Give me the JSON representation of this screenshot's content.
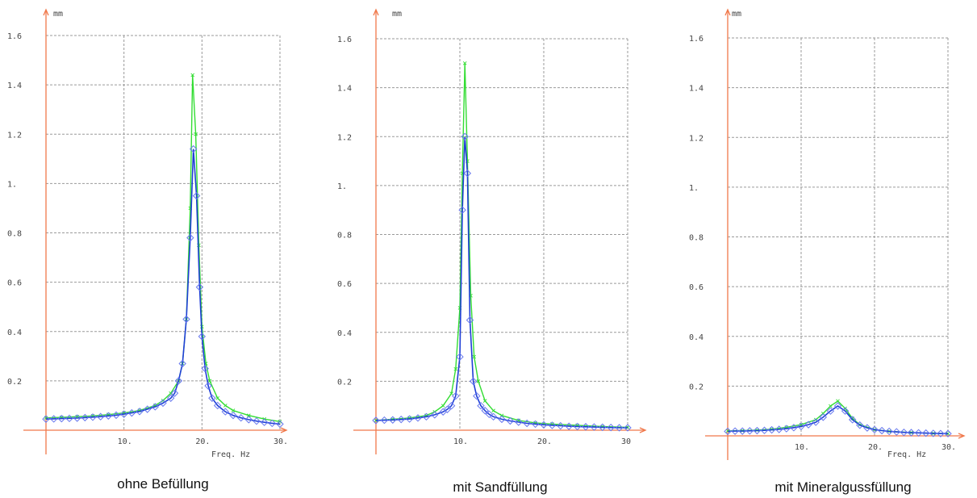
{
  "colors": {
    "axis": "#f0784a",
    "grid": "#9a9a9a",
    "series_green": "#33dd33",
    "series_blue": "#1f3fd6",
    "marker": "#6677ee"
  },
  "chart_data": [
    {
      "type": "line",
      "caption": "ohne Befüllung",
      "ylabel": "mm",
      "xlabel": "Freq. Hz",
      "xlim": [
        0,
        30
      ],
      "ylim": [
        0,
        1.6
      ],
      "xticks": [
        10,
        20,
        30
      ],
      "xtick_labels": [
        "10.",
        "20.",
        "30."
      ],
      "yticks": [
        0.2,
        0.4,
        0.6,
        0.8,
        1.0,
        1.2,
        1.4,
        1.6
      ],
      "ytick_labels": [
        "0.2",
        "0.4",
        "0.6",
        "0.8",
        "1.",
        "1.2",
        "1.4",
        "1.6"
      ],
      "series": [
        {
          "color": "green",
          "x": [
            0,
            2,
            4,
            6,
            8,
            10,
            12,
            14,
            15,
            16,
            17,
            17.5,
            18,
            18.5,
            18.8,
            19.2,
            19.6,
            20,
            20.5,
            21,
            22,
            23,
            24,
            26,
            28,
            30
          ],
          "values": [
            0.05,
            0.052,
            0.055,
            0.058,
            0.063,
            0.07,
            0.08,
            0.1,
            0.12,
            0.15,
            0.2,
            0.27,
            0.45,
            0.9,
            1.44,
            1.2,
            0.75,
            0.42,
            0.27,
            0.2,
            0.13,
            0.1,
            0.08,
            0.06,
            0.045,
            0.035
          ]
        },
        {
          "color": "blue",
          "markers": true,
          "x": [
            0,
            1,
            2,
            3,
            4,
            5,
            6,
            7,
            8,
            9,
            10,
            11,
            12,
            13,
            14,
            15,
            16,
            16.5,
            17,
            17.5,
            18,
            18.5,
            18.9,
            19.3,
            19.7,
            20,
            20.4,
            20.8,
            21.3,
            22,
            23,
            24,
            25,
            26,
            27,
            28,
            29,
            30
          ],
          "values": [
            0.045,
            0.046,
            0.047,
            0.048,
            0.049,
            0.051,
            0.053,
            0.055,
            0.058,
            0.061,
            0.065,
            0.07,
            0.076,
            0.085,
            0.095,
            0.11,
            0.13,
            0.15,
            0.2,
            0.27,
            0.45,
            0.78,
            1.14,
            0.95,
            0.58,
            0.38,
            0.25,
            0.18,
            0.13,
            0.1,
            0.075,
            0.06,
            0.05,
            0.043,
            0.037,
            0.032,
            0.028,
            0.025
          ]
        }
      ]
    },
    {
      "type": "line",
      "caption": "mit Sandfüllung",
      "ylabel": "mm",
      "xlabel": "",
      "xlim": [
        0,
        30
      ],
      "ylim": [
        0,
        1.6
      ],
      "xticks": [
        10,
        20,
        30
      ],
      "xtick_labels": [
        "10.",
        "20.",
        "30"
      ],
      "yticks": [
        0.2,
        0.4,
        0.6,
        0.8,
        1.0,
        1.2,
        1.4,
        1.6
      ],
      "ytick_labels": [
        "0.2",
        "0.4",
        "0.6",
        "0.8",
        "1.",
        "1.2",
        "1.4",
        "1.6"
      ],
      "series": [
        {
          "color": "green",
          "x": [
            0,
            2,
            4,
            6,
            7,
            8,
            9,
            9.5,
            10,
            10.3,
            10.6,
            10.9,
            11.3,
            11.7,
            12.2,
            13,
            14,
            15,
            17,
            19,
            21,
            24,
            27,
            30
          ],
          "values": [
            0.04,
            0.045,
            0.05,
            0.06,
            0.075,
            0.1,
            0.15,
            0.25,
            0.5,
            1.05,
            1.5,
            1.1,
            0.55,
            0.3,
            0.2,
            0.12,
            0.08,
            0.06,
            0.04,
            0.03,
            0.025,
            0.02,
            0.015,
            0.012
          ]
        },
        {
          "color": "blue",
          "markers": true,
          "x": [
            0,
            1,
            2,
            3,
            4,
            5,
            6,
            7,
            8,
            8.5,
            9,
            9.5,
            10,
            10.3,
            10.6,
            10.9,
            11.2,
            11.6,
            12,
            12.5,
            13,
            13.5,
            14,
            15,
            16,
            17,
            18,
            19,
            20,
            21,
            22,
            23,
            24,
            25,
            26,
            27,
            28,
            29,
            30
          ],
          "values": [
            0.04,
            0.041,
            0.042,
            0.044,
            0.046,
            0.05,
            0.055,
            0.063,
            0.075,
            0.085,
            0.1,
            0.14,
            0.3,
            0.9,
            1.2,
            1.05,
            0.45,
            0.2,
            0.14,
            0.1,
            0.08,
            0.065,
            0.055,
            0.045,
            0.038,
            0.033,
            0.028,
            0.025,
            0.022,
            0.02,
            0.018,
            0.016,
            0.015,
            0.014,
            0.013,
            0.012,
            0.011,
            0.01,
            0.01
          ]
        }
      ]
    },
    {
      "type": "line",
      "caption": "mit Mineralgussfüllung",
      "ylabel": "mm",
      "xlabel": "Freq. Hz",
      "xlim": [
        0,
        30
      ],
      "ylim": [
        0,
        1.6
      ],
      "xticks": [
        10,
        20,
        30
      ],
      "xtick_labels": [
        "10.",
        "20.",
        "30."
      ],
      "yticks": [
        0.2,
        0.4,
        0.6,
        0.8,
        1.0,
        1.2,
        1.4,
        1.6
      ],
      "ytick_labels": [
        "0.2",
        "0.4",
        "0.6",
        "0.8",
        "1.",
        "1.2",
        "1.4",
        "1.6"
      ],
      "series": [
        {
          "color": "green",
          "x": [
            0,
            2,
            4,
            6,
            8,
            10,
            12,
            13,
            14,
            15,
            16,
            17,
            18,
            20,
            22,
            25,
            28,
            30
          ],
          "values": [
            0.02,
            0.021,
            0.023,
            0.027,
            0.034,
            0.045,
            0.065,
            0.09,
            0.12,
            0.14,
            0.11,
            0.07,
            0.045,
            0.025,
            0.018,
            0.013,
            0.01,
            0.009
          ]
        },
        {
          "color": "blue",
          "markers": true,
          "x": [
            0,
            1,
            2,
            3,
            4,
            5,
            6,
            7,
            8,
            9,
            10,
            11,
            12,
            13,
            14,
            15,
            16,
            17,
            18,
            19,
            20,
            21,
            22,
            23,
            24,
            25,
            26,
            27,
            28,
            29,
            30
          ],
          "values": [
            0.018,
            0.019,
            0.019,
            0.02,
            0.021,
            0.022,
            0.024,
            0.026,
            0.029,
            0.033,
            0.038,
            0.045,
            0.055,
            0.075,
            0.1,
            0.12,
            0.1,
            0.065,
            0.043,
            0.032,
            0.025,
            0.021,
            0.018,
            0.016,
            0.014,
            0.013,
            0.012,
            0.011,
            0.01,
            0.009,
            0.009
          ]
        }
      ]
    }
  ]
}
